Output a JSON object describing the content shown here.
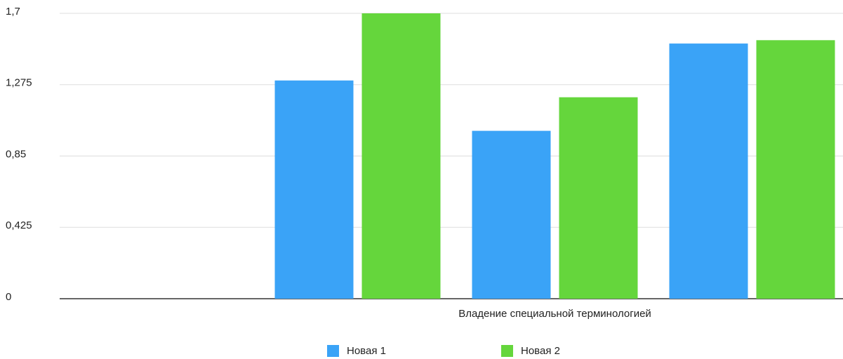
{
  "chart_data": {
    "type": "bar",
    "categories": [
      null,
      null,
      "Владение специальной терминологией",
      null
    ],
    "series": [
      {
        "name": "Новая 1",
        "color": "#3aa3f7",
        "values": [
          null,
          1.3,
          1.0,
          1.52
        ]
      },
      {
        "name": "Новая 2",
        "color": "#65d63c",
        "values": [
          null,
          1.7,
          1.2,
          1.54
        ]
      }
    ],
    "ylim": [
      0,
      1.7
    ],
    "yticks": [
      0,
      {
        "value": 0.425,
        "label": "0,425"
      },
      {
        "value": 0.85,
        "label": "0,85"
      },
      {
        "value": 1.275,
        "label": "1,275"
      },
      {
        "value": 1.7,
        "label": "1,7"
      }
    ],
    "grid": true,
    "legend": "bottom"
  }
}
